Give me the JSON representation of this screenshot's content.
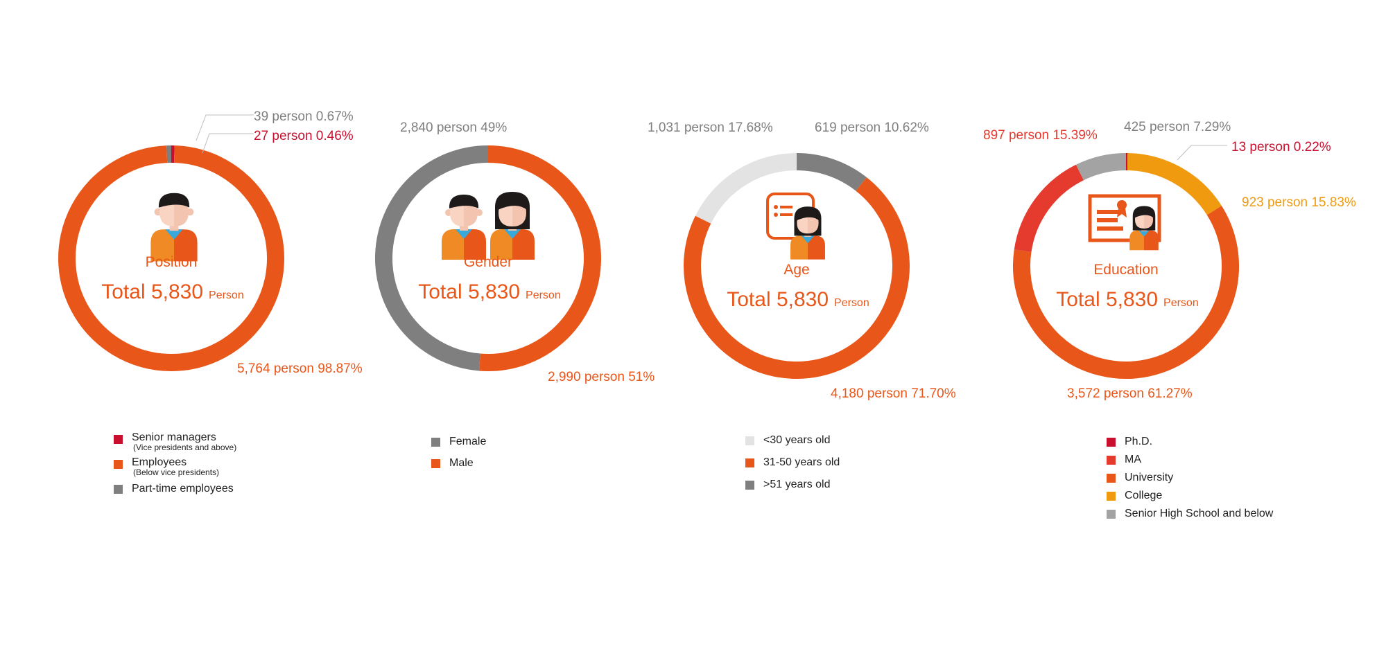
{
  "colors": {
    "orange": "#E8561A",
    "crimson": "#C8102E",
    "red": "#E53A2E",
    "gray": "#7F7F7F",
    "gray_mid": "#A3A3A3",
    "gray_light": "#E3E3E3",
    "amber": "#F09A10"
  },
  "chart_data": [
    {
      "type": "pie",
      "variant": "donut",
      "title": "Position",
      "total_label": "Total 5,830",
      "unit": "Person",
      "icon": "employee-icon",
      "segments": [
        {
          "name": "Senior managers",
          "note": "(Vice presidents and above)",
          "value": 27,
          "percent": 0.46,
          "label": "27 person 0.46%",
          "color": "#C8102E",
          "label_color": "#C8102E"
        },
        {
          "name": "Employees",
          "note": "(Below vice presidents)",
          "value": 5764,
          "percent": 98.87,
          "label": "5,764 person 98.87%",
          "color": "#E8561A",
          "label_color": "#E8561A"
        },
        {
          "name": "Part-time employees",
          "note": "",
          "value": 39,
          "percent": 0.67,
          "label": "39 person 0.67%",
          "color": "#7F7F7F",
          "label_color": "#7F7F7F"
        }
      ]
    },
    {
      "type": "pie",
      "variant": "donut",
      "title": "Gender",
      "total_label": "Total 5,830",
      "unit": "Person",
      "icon": "male-female-icon",
      "segments": [
        {
          "name": "Male",
          "note": "",
          "value": 2990,
          "percent": 51,
          "label": "2,990 person  51%",
          "color": "#E8561A",
          "label_color": "#E8561A"
        },
        {
          "name": "Female",
          "note": "",
          "value": 2840,
          "percent": 49,
          "label": "2,840 person 49%",
          "color": "#7F7F7F",
          "label_color": "#7F7F7F"
        }
      ],
      "legend_order": [
        1,
        0
      ]
    },
    {
      "type": "pie",
      "variant": "donut",
      "title": "Age",
      "total_label": "Total 5,830",
      "unit": "Person",
      "icon": "id-card-icon",
      "segments": [
        {
          "name": ">51 years old",
          "note": "",
          "value": 619,
          "percent": 10.62,
          "label": "619 person 10.62%",
          "color": "#7F7F7F",
          "label_color": "#7F7F7F"
        },
        {
          "name": "31-50 years old",
          "note": "",
          "value": 4180,
          "percent": 71.7,
          "label": "4,180 person 71.70%",
          "color": "#E8561A",
          "label_color": "#E8561A"
        },
        {
          "name": "<30 years old",
          "note": "",
          "value": 1031,
          "percent": 17.68,
          "label": "1,031 person 17.68%",
          "color": "#E3E3E3",
          "label_color": "#7F7F7F"
        }
      ],
      "legend_order": [
        2,
        1,
        0
      ]
    },
    {
      "type": "pie",
      "variant": "donut",
      "title": "Education",
      "total_label": "Total 5,830",
      "unit": "Person",
      "icon": "certificate-icon",
      "segments": [
        {
          "name": "Ph.D.",
          "note": "",
          "value": 13,
          "percent": 0.22,
          "label": "13 person 0.22%",
          "color": "#C8102E",
          "label_color": "#C8102E"
        },
        {
          "name": "College",
          "note": "",
          "value": 923,
          "percent": 15.83,
          "label": "923 person 15.83%",
          "color": "#F09A10",
          "label_color": "#F09A10"
        },
        {
          "name": "University",
          "note": "",
          "value": 3572,
          "percent": 61.27,
          "label": "3,572 person 61.27%",
          "color": "#E8561A",
          "label_color": "#E8561A"
        },
        {
          "name": "MA",
          "note": "",
          "value": 897,
          "percent": 15.39,
          "label": "897 person 15.39%",
          "color": "#E53A2E",
          "label_color": "#E53A2E"
        },
        {
          "name": "Senior High School and below",
          "note": "",
          "value": 425,
          "percent": 7.29,
          "label": "425 person 7.29%",
          "color": "#A3A3A3",
          "label_color": "#7F7F7F"
        }
      ],
      "legend_order": [
        0,
        3,
        2,
        1,
        4
      ]
    }
  ]
}
